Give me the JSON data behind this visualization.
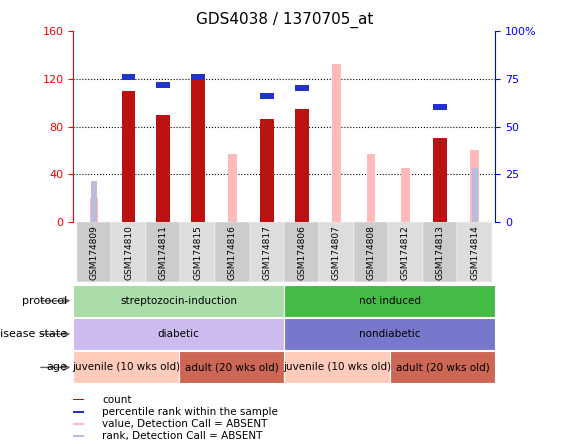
{
  "title": "GDS4038 / 1370705_at",
  "samples": [
    "GSM174809",
    "GSM174810",
    "GSM174811",
    "GSM174815",
    "GSM174816",
    "GSM174817",
    "GSM174806",
    "GSM174807",
    "GSM174808",
    "GSM174812",
    "GSM174813",
    "GSM174814"
  ],
  "count_values": [
    0,
    110,
    90,
    119,
    0,
    86,
    95,
    0,
    0,
    0,
    70,
    0
  ],
  "percentile_values": [
    0,
    76,
    72,
    76,
    0,
    66,
    70,
    0,
    0,
    0,
    60,
    0
  ],
  "absent_value_values": [
    20,
    0,
    0,
    0,
    57,
    0,
    0,
    132,
    57,
    45,
    0,
    60
  ],
  "absent_rank_values": [
    34,
    0,
    0,
    0,
    0,
    0,
    0,
    0,
    0,
    0,
    0,
    45
  ],
  "ylim": [
    0,
    160
  ],
  "yticks_left": [
    0,
    40,
    80,
    120,
    160
  ],
  "yticks_right": [
    0,
    25,
    50,
    75,
    100
  ],
  "color_count": "#bb1111",
  "color_percentile": "#2233cc",
  "color_absent_value": "#ffbbbb",
  "color_absent_rank": "#bbbbdd",
  "protocol_groups": [
    {
      "label": "streptozocin-induction",
      "start": 0,
      "end": 6,
      "color": "#aaddaa"
    },
    {
      "label": "not induced",
      "start": 6,
      "end": 12,
      "color": "#44bb44"
    }
  ],
  "disease_groups": [
    {
      "label": "diabetic",
      "start": 0,
      "end": 6,
      "color": "#ccbbee"
    },
    {
      "label": "nondiabetic",
      "start": 6,
      "end": 12,
      "color": "#7777cc"
    }
  ],
  "age_groups": [
    {
      "label": "juvenile (10 wks old)",
      "start": 0,
      "end": 3,
      "color": "#ffccbb"
    },
    {
      "label": "adult (20 wks old)",
      "start": 3,
      "end": 6,
      "color": "#cc6655"
    },
    {
      "label": "juvenile (10 wks old)",
      "start": 6,
      "end": 9,
      "color": "#ffccbb"
    },
    {
      "label": "adult (20 wks old)",
      "start": 9,
      "end": 12,
      "color": "#cc6655"
    }
  ],
  "bg_color": "#ffffff",
  "bar_width": 0.4,
  "absent_bar_width": 0.25,
  "rank_bar_width": 0.18
}
